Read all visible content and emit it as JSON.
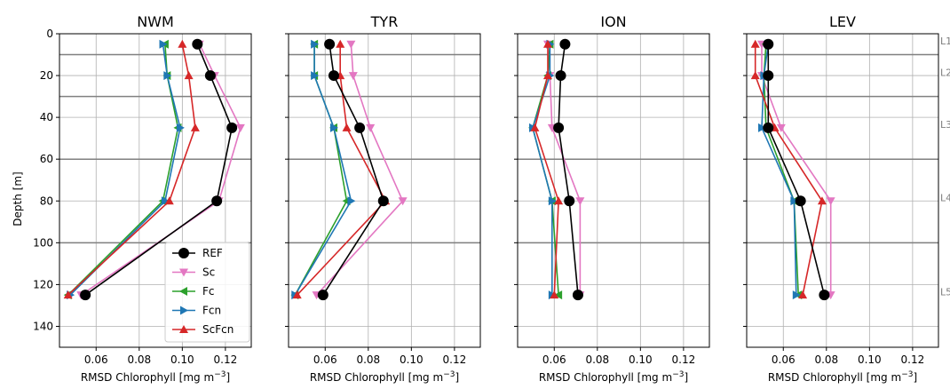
{
  "chart_data": {
    "type": "line",
    "ylabel": "Depth [m]",
    "xlabel_main": "RMSD Chlorophyll [mg m",
    "xlabel_sup": "−3",
    "xlabel_end": "]",
    "xlim": [
      0.043,
      0.132
    ],
    "ylim": [
      150,
      0
    ],
    "xticks": [
      0.06,
      0.08,
      0.1,
      0.12
    ],
    "xtick_labels": [
      "0.06",
      "0.08",
      "0.10",
      "0.12"
    ],
    "yticks": [
      0,
      20,
      40,
      60,
      80,
      100,
      120,
      140
    ],
    "ytick_labels": [
      "0",
      "20",
      "40",
      "60",
      "80",
      "100",
      "120",
      "140"
    ],
    "grid": true,
    "depths": [
      5,
      20,
      45,
      80,
      125
    ],
    "layer_boundaries": [
      10,
      30,
      60,
      100
    ],
    "layer_labels": [
      {
        "text": "L1",
        "depth": 3
      },
      {
        "text": "L2",
        "depth": 18
      },
      {
        "text": "L3",
        "depth": 43
      },
      {
        "text": "L4",
        "depth": 78
      },
      {
        "text": "L5",
        "depth": 123
      }
    ],
    "legend": {
      "position": "lower-right",
      "panel": 0
    },
    "series_styles": [
      {
        "name": "REF",
        "color": "#000000",
        "marker": "circle"
      },
      {
        "name": "Sc",
        "color": "#e377c2",
        "marker": "triangle-down"
      },
      {
        "name": "Fc",
        "color": "#2ca02c",
        "marker": "triangle-left"
      },
      {
        "name": "Fcn",
        "color": "#1f77b4",
        "marker": "triangle-right"
      },
      {
        "name": "ScFcn",
        "color": "#d62728",
        "marker": "triangle-up"
      }
    ],
    "panels": [
      {
        "title": "NWM",
        "series": [
          {
            "name": "REF",
            "values": [
              0.107,
              0.113,
              0.123,
              0.116,
              0.055
            ]
          },
          {
            "name": "Sc",
            "values": [
              0.108,
              0.115,
              0.127,
              0.117,
              0.053
            ]
          },
          {
            "name": "Fc",
            "values": [
              0.092,
              0.093,
              0.098,
              0.091,
              0.047
            ]
          },
          {
            "name": "Fcn",
            "values": [
              0.091,
              0.093,
              0.099,
              0.092,
              0.048
            ]
          },
          {
            "name": "ScFcn",
            "values": [
              0.1,
              0.103,
              0.106,
              0.094,
              0.047
            ]
          }
        ]
      },
      {
        "title": "TYR",
        "series": [
          {
            "name": "REF",
            "values": [
              0.062,
              0.064,
              0.076,
              0.087,
              0.059
            ]
          },
          {
            "name": "Sc",
            "values": [
              0.072,
              0.073,
              0.081,
              0.096,
              0.056
            ]
          },
          {
            "name": "Fc",
            "values": [
              0.055,
              0.055,
              0.064,
              0.07,
              0.046
            ]
          },
          {
            "name": "Fcn",
            "values": [
              0.055,
              0.055,
              0.064,
              0.072,
              0.046
            ]
          },
          {
            "name": "ScFcn",
            "values": [
              0.067,
              0.067,
              0.07,
              0.088,
              0.047
            ]
          }
        ]
      },
      {
        "title": "ION",
        "series": [
          {
            "name": "REF",
            "values": [
              0.065,
              0.063,
              0.062,
              0.067,
              0.071
            ]
          },
          {
            "name": "Sc",
            "values": [
              0.057,
              0.058,
              0.059,
              0.072,
              0.072
            ]
          },
          {
            "name": "Fc",
            "values": [
              0.058,
              0.057,
              0.05,
              0.059,
              0.062
            ]
          },
          {
            "name": "Fcn",
            "values": [
              0.058,
              0.058,
              0.05,
              0.059,
              0.059
            ]
          },
          {
            "name": "ScFcn",
            "values": [
              0.057,
              0.057,
              0.051,
              0.062,
              0.06
            ]
          }
        ]
      },
      {
        "title": "LEV",
        "series": [
          {
            "name": "REF",
            "values": [
              0.053,
              0.053,
              0.053,
              0.068,
              0.079
            ]
          },
          {
            "name": "Sc",
            "values": [
              0.05,
              0.05,
              0.059,
              0.082,
              0.082
            ]
          },
          {
            "name": "Fc",
            "values": [
              0.052,
              0.051,
              0.052,
              0.065,
              0.067
            ]
          },
          {
            "name": "Fcn",
            "values": [
              0.053,
              0.051,
              0.05,
              0.065,
              0.066
            ]
          },
          {
            "name": "ScFcn",
            "values": [
              0.047,
              0.047,
              0.056,
              0.078,
              0.069
            ]
          }
        ]
      }
    ]
  }
}
